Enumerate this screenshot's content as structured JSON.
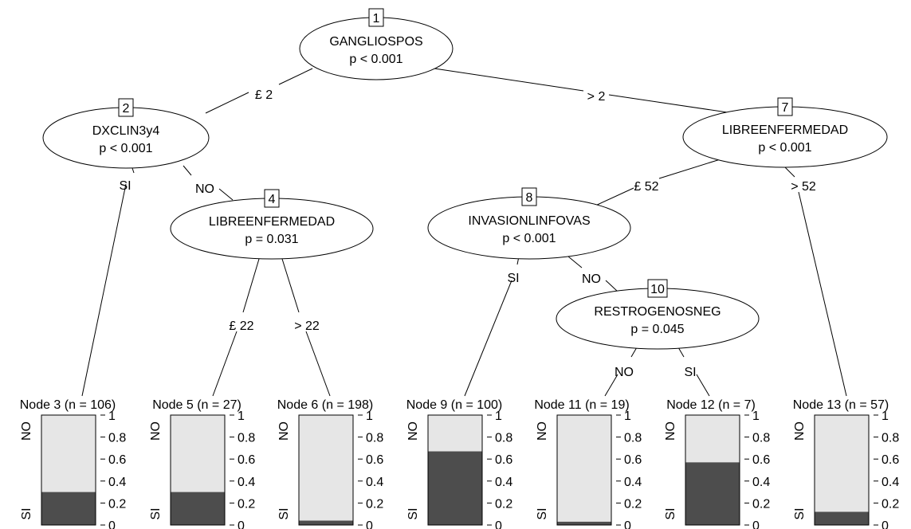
{
  "inner_nodes": [
    {
      "id": "1",
      "variable": "GANGLIOSPOS",
      "pvalue": "p < 0.001"
    },
    {
      "id": "2",
      "variable": "DXCLIN3y4",
      "pvalue": "p < 0.001"
    },
    {
      "id": "4",
      "variable": "LIBREENFERMEDAD",
      "pvalue": "p = 0.031"
    },
    {
      "id": "7",
      "variable": "LIBREENFERMEDAD",
      "pvalue": "p < 0.001"
    },
    {
      "id": "8",
      "variable": "INVASIONLINFOVAS",
      "pvalue": "p < 0.001"
    },
    {
      "id": "10",
      "variable": "RESTROGENOSNEG",
      "pvalue": "p = 0.045"
    }
  ],
  "edges": [
    {
      "from": "1",
      "to": "2",
      "label": "£ 2"
    },
    {
      "from": "1",
      "to": "7",
      "label": "> 2"
    },
    {
      "from": "2",
      "to": "3",
      "label": "SI"
    },
    {
      "from": "2",
      "to": "4",
      "label": "NO"
    },
    {
      "from": "4",
      "to": "5",
      "label": "£ 22"
    },
    {
      "from": "4",
      "to": "6",
      "label": "> 22"
    },
    {
      "from": "7",
      "to": "8",
      "label": "£ 52"
    },
    {
      "from": "7",
      "to": "13",
      "label": "> 52"
    },
    {
      "from": "8",
      "to": "9",
      "label": "SI"
    },
    {
      "from": "8",
      "to": "10",
      "label": "NO"
    },
    {
      "from": "10",
      "to": "11",
      "label": "NO"
    },
    {
      "from": "10",
      "to": "12",
      "label": "SI"
    }
  ],
  "terminal_nodes": [
    {
      "id": "3",
      "label": "Node 3 (n = 106)",
      "si_fraction": 0.3
    },
    {
      "id": "5",
      "label": "Node 5 (n = 27)",
      "si_fraction": 0.3
    },
    {
      "id": "6",
      "label": "Node 6 (n = 198)",
      "si_fraction": 0.04
    },
    {
      "id": "9",
      "label": "Node 9 (n = 100)",
      "si_fraction": 0.67
    },
    {
      "id": "11",
      "label": "Node 11 (n = 19)",
      "si_fraction": 0.03
    },
    {
      "id": "12",
      "label": "Node 12 (n = 7)",
      "si_fraction": 0.57
    },
    {
      "id": "13",
      "label": "Node 13 (n = 57)",
      "si_fraction": 0.12
    }
  ],
  "bar_categories": {
    "top": "NO",
    "bottom": "SI"
  },
  "axis_ticks": [
    "0",
    "0.2",
    "0.4",
    "0.6",
    "0.8",
    "1"
  ],
  "colors": {
    "no": "#e6e6e6",
    "si": "#4d4d4d"
  }
}
